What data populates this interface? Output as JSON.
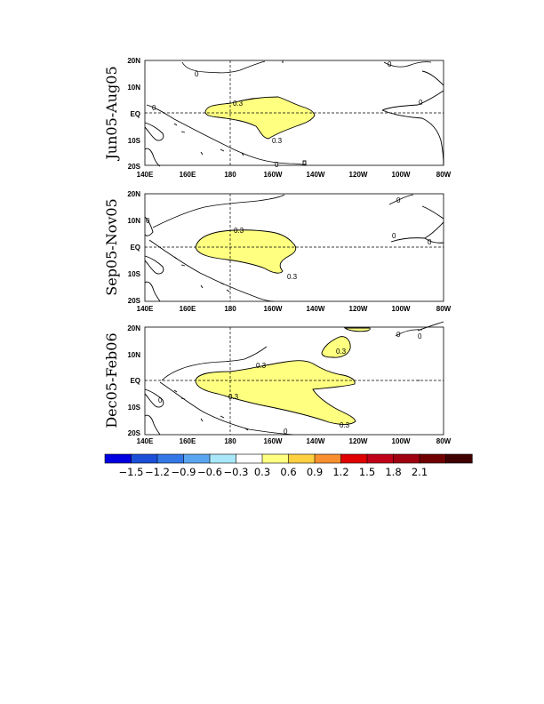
{
  "panels": [
    {
      "title": "Jun05-Aug05",
      "ctr_labels": {
        "a": "0",
        "b": "0.3",
        "c": "0.3",
        "d": "0",
        "e": "0",
        "f": "0",
        "g": "0"
      }
    },
    {
      "title": "Sep05-Nov05",
      "ctr_labels": {
        "a": "0.3",
        "b": "0.3",
        "c": "0",
        "d": "0",
        "e": "0",
        "f": "0"
      }
    },
    {
      "title": "Dec05-Feb06",
      "ctr_labels": {
        "a": "0.3",
        "b": "0.3",
        "c": "0.3",
        "d": "0.3",
        "e": "0",
        "f": "0",
        "g": "0",
        "h": "0"
      }
    }
  ],
  "ylabels": [
    "20N",
    "10N",
    "EQ",
    "10S",
    "20S"
  ],
  "xlabels": [
    "140E",
    "160E",
    "180",
    "160W",
    "140W",
    "120W",
    "100W",
    "80W"
  ],
  "colorbar": {
    "colors": [
      "#0000e0",
      "#1b4fd8",
      "#3378e6",
      "#5aa5f0",
      "#a8e8f8",
      "#ffffff",
      "#ffff80",
      "#ffd040",
      "#f89030",
      "#e00000",
      "#c00018",
      "#a00010",
      "#700000",
      "#400000"
    ],
    "labels": [
      "-1.5",
      "-1.2",
      "-0.9",
      "-0.6",
      "-0.3",
      "0.3",
      "0.6",
      "0.9",
      "1.2",
      "1.5",
      "1.8",
      "2.1"
    ]
  }
}
